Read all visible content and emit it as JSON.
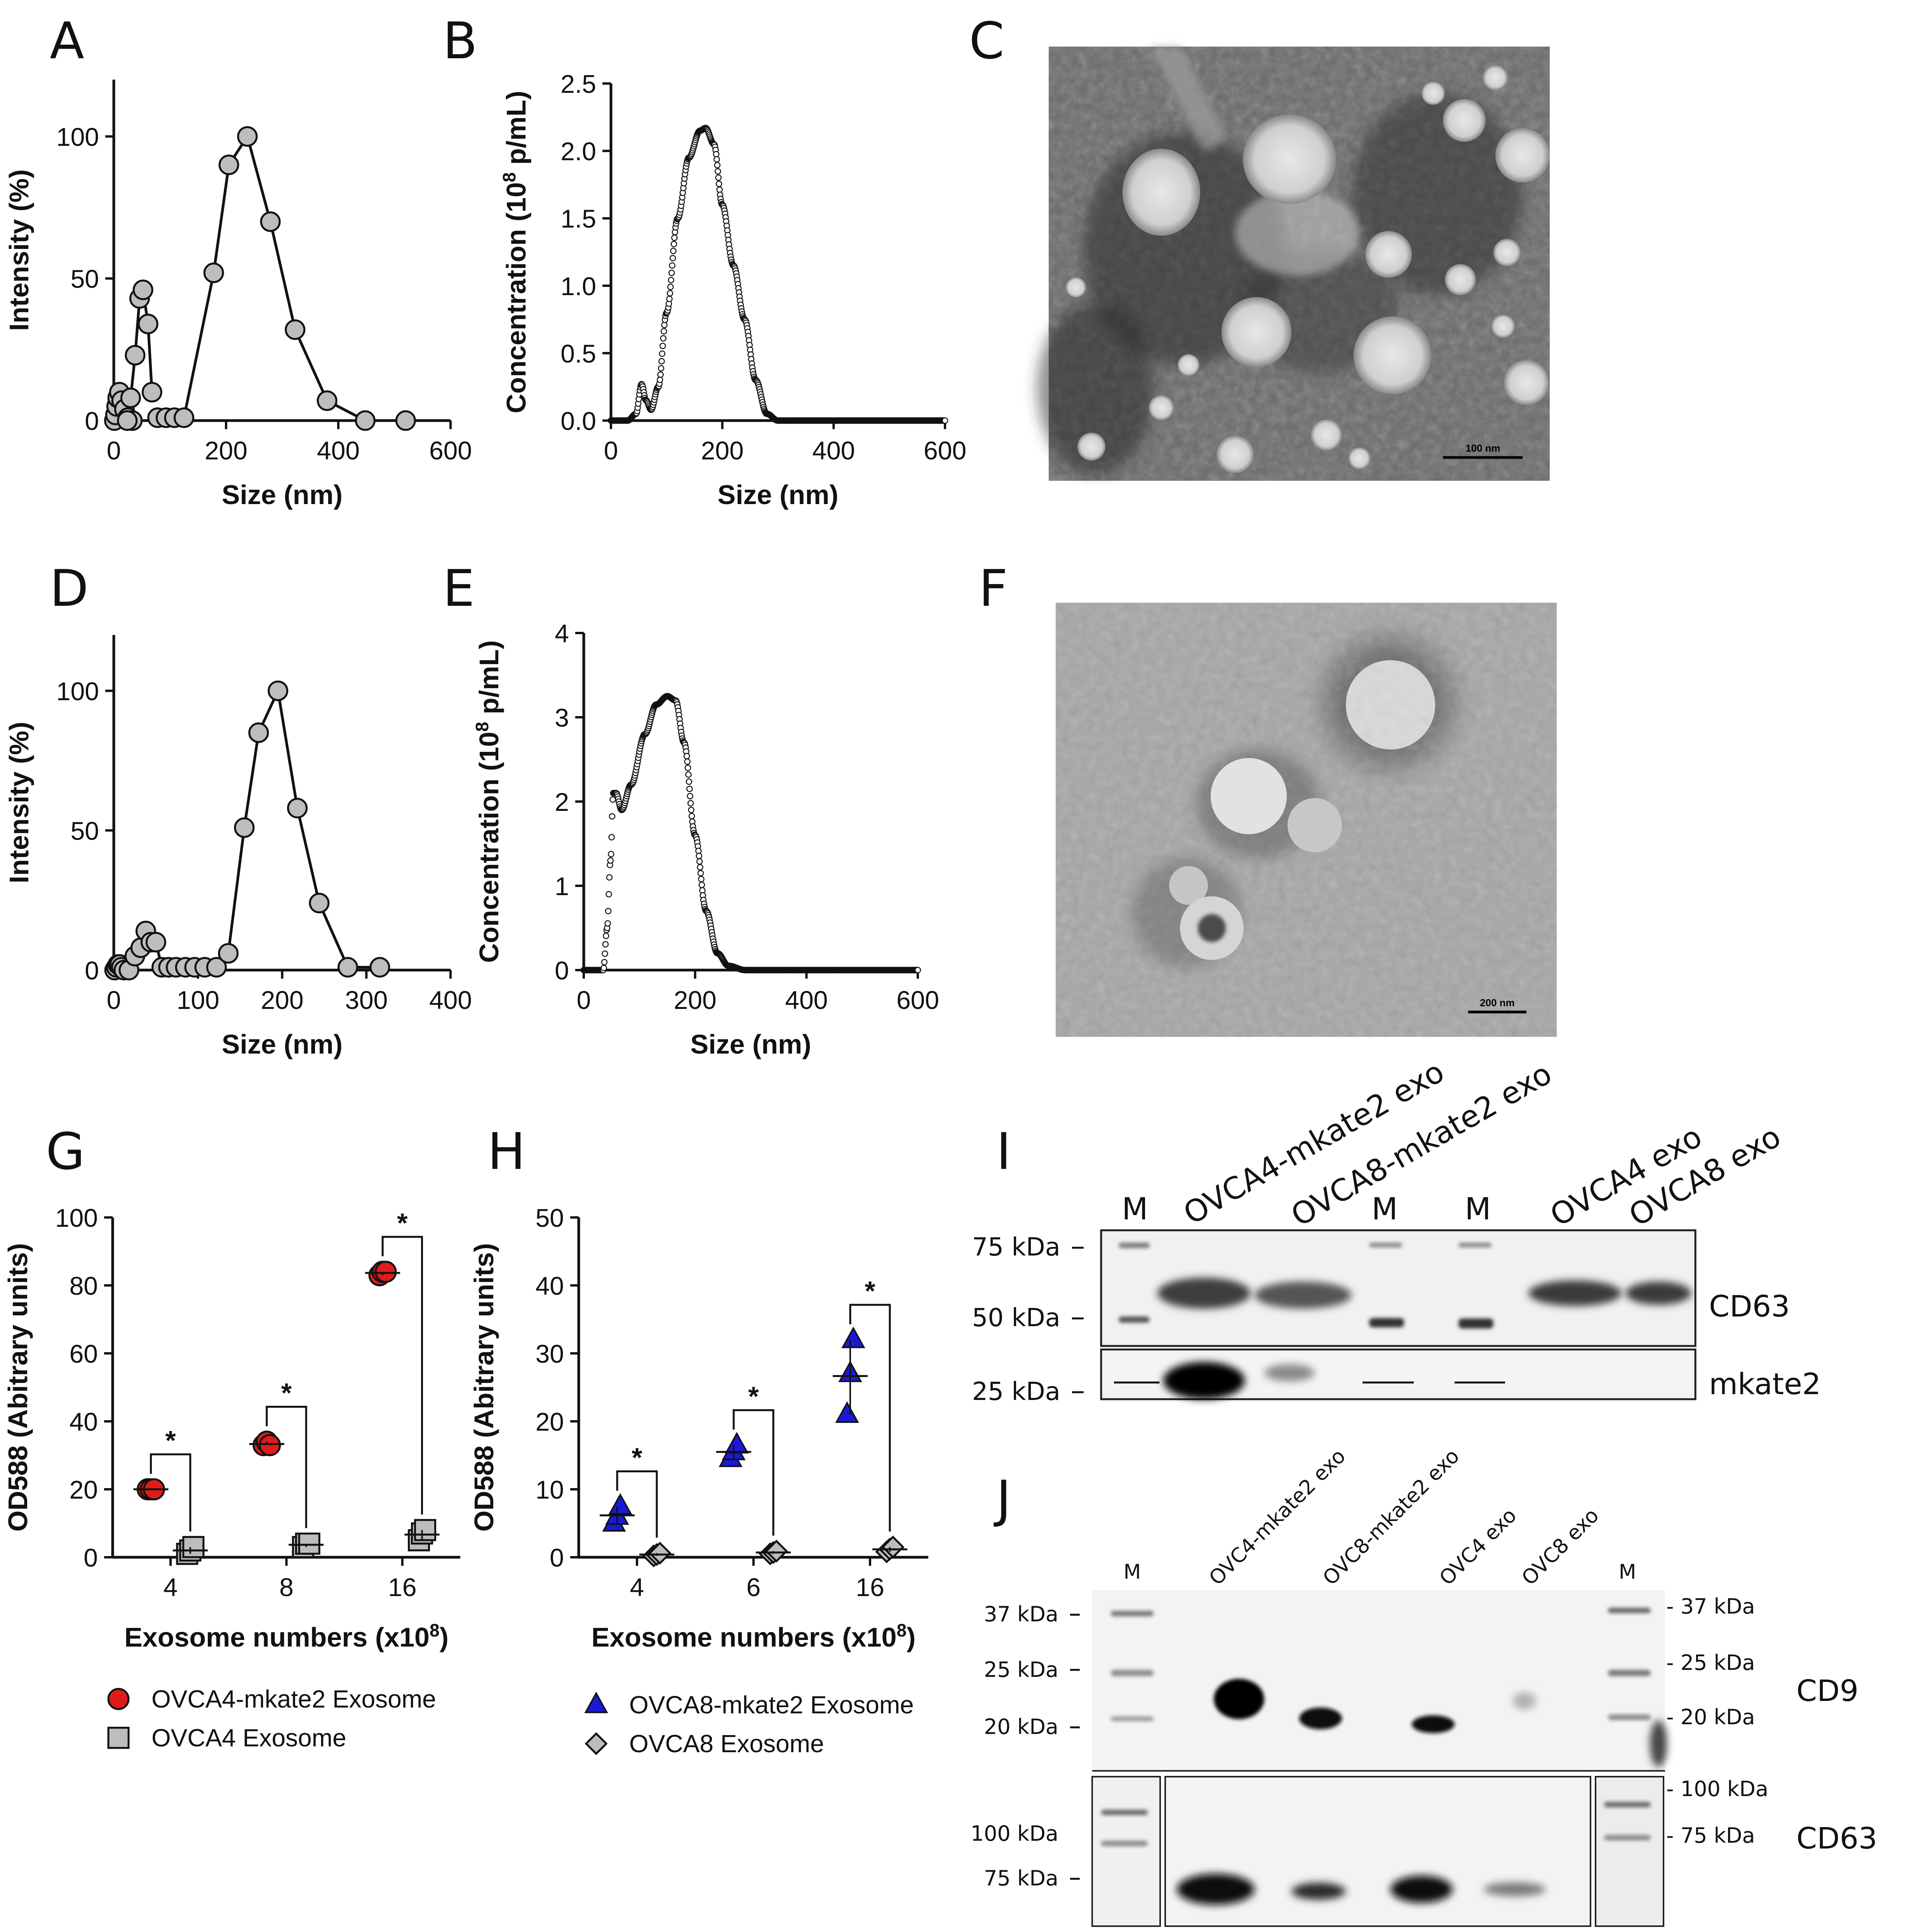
{
  "panel_labels": {
    "A": "A",
    "B": "B",
    "C": "C",
    "D": "D",
    "E": "E",
    "F": "F",
    "G": "G",
    "H": "H",
    "I": "I",
    "J": "J"
  },
  "tem": {
    "C_scale": "100 nm",
    "F_scale": "200 nm"
  },
  "chart_data": [
    {
      "id": "A",
      "type": "line",
      "xlabel": "Size (nm)",
      "ylabel": "Intensity (%)",
      "xlim": [
        0,
        600
      ],
      "ylim": [
        0,
        120
      ],
      "xticks": [
        "0",
        "200",
        "400",
        "600"
      ],
      "yticks": [
        "0",
        "50",
        "100"
      ],
      "series": [
        {
          "x": [
            1,
            3,
            5,
            7,
            10,
            14,
            19,
            25,
            33
          ],
          "y": [
            0,
            2,
            5,
            8,
            10,
            7,
            4,
            1,
            0
          ]
        },
        {
          "x": [
            24,
            30,
            38,
            46,
            52,
            61,
            68
          ],
          "y": [
            0,
            8,
            23,
            43,
            46,
            34,
            10
          ]
        },
        {
          "x": [
            78,
            93,
            108,
            125,
            178,
            205,
            238,
            279,
            323,
            380,
            448,
            520
          ],
          "y": [
            1,
            1,
            1,
            1,
            52,
            90,
            100,
            70,
            32,
            7,
            0,
            0
          ]
        }
      ]
    },
    {
      "id": "B",
      "type": "scatter",
      "xlabel": "Size (nm)",
      "ylabel": "Concentration (10⁸ p/mL)",
      "xlim": [
        0,
        600
      ],
      "ylim": [
        0,
        2.5
      ],
      "xticks": [
        "0",
        "200",
        "400",
        "600"
      ],
      "yticks": [
        "0.0",
        "0.5",
        "1.0",
        "1.5",
        "2.0",
        "2.5"
      ],
      "curve": [
        [
          0,
          0
        ],
        [
          30,
          0
        ],
        [
          45,
          0.05
        ],
        [
          55,
          0.27
        ],
        [
          63,
          0.15
        ],
        [
          72,
          0.08
        ],
        [
          85,
          0.25
        ],
        [
          100,
          0.8
        ],
        [
          120,
          1.5
        ],
        [
          140,
          1.95
        ],
        [
          160,
          2.15
        ],
        [
          170,
          2.17
        ],
        [
          185,
          2.05
        ],
        [
          200,
          1.6
        ],
        [
          220,
          1.15
        ],
        [
          240,
          0.75
        ],
        [
          260,
          0.3
        ],
        [
          280,
          0.05
        ],
        [
          300,
          0
        ],
        [
          600,
          0
        ]
      ]
    },
    {
      "id": "D",
      "type": "line",
      "xlabel": "Size (nm)",
      "ylabel": "Intensity (%)",
      "xlim": [
        0,
        400
      ],
      "ylim": [
        0,
        120
      ],
      "xticks": [
        "0",
        "100",
        "200",
        "300",
        "400"
      ],
      "yticks": [
        "0",
        "50",
        "100"
      ],
      "series": [
        {
          "x": [
            1,
            3,
            5,
            7,
            9,
            12
          ],
          "y": [
            0,
            1,
            2,
            2,
            1,
            0
          ]
        },
        {
          "x": [
            18,
            25,
            32,
            38,
            44,
            50,
            57,
            65,
            74,
            85,
            96,
            108,
            122,
            136,
            155,
            172,
            195,
            218,
            244,
            278,
            316
          ],
          "y": [
            0,
            5,
            8,
            14,
            10,
            10,
            1,
            1,
            1,
            1,
            1,
            1,
            1,
            6,
            51,
            85,
            100,
            58,
            24,
            1,
            1
          ]
        }
      ]
    },
    {
      "id": "E",
      "type": "scatter",
      "xlabel": "Size (nm)",
      "ylabel": "Concentration (10⁸ p/mL)",
      "xlim": [
        0,
        600
      ],
      "ylim": [
        0,
        4
      ],
      "xticks": [
        "0",
        "200",
        "400",
        "600"
      ],
      "yticks": [
        "0",
        "1",
        "2",
        "3",
        "4"
      ],
      "curve": [
        [
          0,
          0
        ],
        [
          35,
          0
        ],
        [
          42,
          0.5
        ],
        [
          48,
          1.3
        ],
        [
          53,
          2.1
        ],
        [
          58,
          2.1
        ],
        [
          68,
          1.9
        ],
        [
          85,
          2.2
        ],
        [
          110,
          2.8
        ],
        [
          130,
          3.15
        ],
        [
          150,
          3.25
        ],
        [
          165,
          3.2
        ],
        [
          180,
          2.7
        ],
        [
          200,
          1.6
        ],
        [
          220,
          0.7
        ],
        [
          240,
          0.2
        ],
        [
          260,
          0.05
        ],
        [
          290,
          0
        ],
        [
          600,
          0
        ]
      ]
    },
    {
      "id": "G",
      "type": "scatter",
      "xlabel": "Exosome numbers (x10⁸)",
      "ylabel": "OD588 (Abitrary units)",
      "ylim": [
        0,
        100
      ],
      "yticks": [
        "0",
        "20",
        "40",
        "60",
        "80",
        "100"
      ],
      "categories": [
        "4",
        "8",
        "16"
      ],
      "series": [
        {
          "name": "OVCA4-mkate2 Exosome",
          "color": "#e01b1b",
          "marker": "circle",
          "values": [
            [
              20,
              20,
              20
            ],
            [
              33,
              34,
              33
            ],
            [
              83,
              84,
              84
            ]
          ]
        },
        {
          "name": "OVCA4 Exosome",
          "color": "#bdbdbd",
          "marker": "square",
          "values": [
            [
              1,
              2,
              3
            ],
            [
              3,
              4,
              4
            ],
            [
              5,
              7,
              8
            ]
          ]
        }
      ],
      "significance": [
        "*",
        "*",
        "*"
      ]
    },
    {
      "id": "H",
      "type": "scatter",
      "xlabel": "Exosome numbers (x10⁸)",
      "ylabel": "OD588 (Abitrary units)",
      "ylim": [
        0,
        50
      ],
      "yticks": [
        "0",
        "10",
        "20",
        "30",
        "40",
        "50"
      ],
      "categories": [
        "4",
        "6",
        "16"
      ],
      "series": [
        {
          "name": "OVCA8-mkate2 Exosome",
          "color": "#1a1ad6",
          "marker": "triangle",
          "values": [
            [
              5,
              6,
              7.5
            ],
            [
              14.5,
              15.5,
              16.5
            ],
            [
              21,
              27,
              32
            ]
          ]
        },
        {
          "name": "OVCA8 Exosome",
          "color": "#bdbdbd",
          "marker": "diamond",
          "values": [
            [
              0.2,
              0.4,
              0.6
            ],
            [
              0.5,
              0.7,
              0.9
            ],
            [
              0.8,
              1.2,
              1.5
            ]
          ]
        }
      ],
      "significance": [
        "*",
        "*",
        "*"
      ]
    }
  ],
  "blot_I": {
    "lanes": [
      "M",
      "OVCA4-mkate2 exo",
      "OVCA8-mkate2 exo",
      "M",
      "M",
      "OVCA4 exo",
      "OVCA8 exo"
    ],
    "markers": [
      "75 kDa",
      "50 kDa",
      "25 kDa"
    ],
    "proteins": [
      "CD63",
      "mkate2"
    ]
  },
  "blot_J": {
    "lanes": [
      "M",
      "OVC4-mkate2 exo",
      "OVC8-mkate2 exo",
      "OVC4 exo",
      "OVC8 exo",
      "M"
    ],
    "markers_left": [
      "37 kDa",
      "25 kDa",
      "20 kDa",
      "100 kDa",
      "75 kDa"
    ],
    "markers_right": [
      "- 37 kDa",
      "- 25 kDa",
      "- 20 kDa",
      "- 100 kDa",
      "- 75 kDa"
    ],
    "proteins": [
      "CD9",
      "CD63"
    ]
  }
}
